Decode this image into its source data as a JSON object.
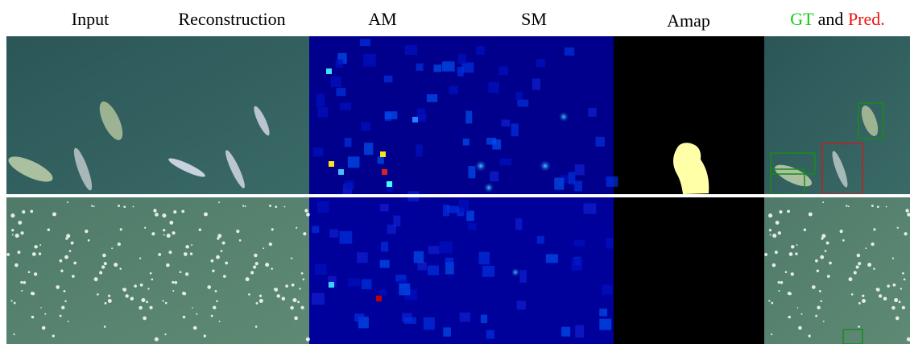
{
  "header": {
    "columns": [
      "Input",
      "Reconstruction",
      "AM",
      "SM",
      "Amap"
    ],
    "last": {
      "gt": "GT",
      "and": "and",
      "pred": "Pred."
    }
  }
}
